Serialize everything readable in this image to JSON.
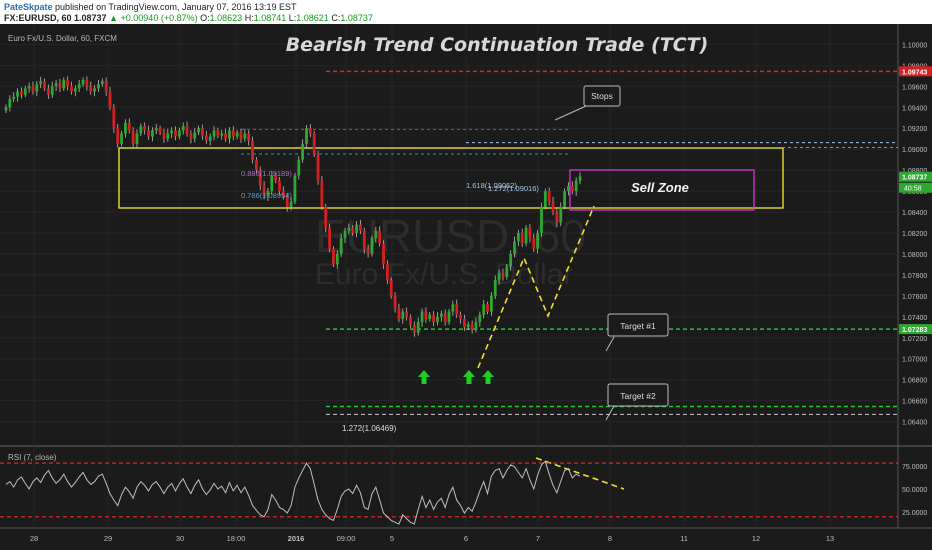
{
  "header": {
    "author": "PateSkpate",
    "published": "published on TradingView.com, January 07, 2016 13:19 EST",
    "symbol": "FX:EURUSD, 60",
    "price": "1.08737",
    "arrow": "▲",
    "change": "+0.00940 (+0.87%)",
    "open_label": "O:",
    "open": "1.08623",
    "high_label": "H:",
    "high": "1.08741",
    "low_label": "L:",
    "low": "1.08621",
    "close_label": "C:",
    "close": "1.08737"
  },
  "chart_data": {
    "type": "candlestick",
    "title": "Bearish Trend Continuation Trade (TCT)",
    "instrument_label": "Euro Fx/U.S. Dollar, 60, FXCM",
    "watermark": [
      "EURUSD, 60",
      "Euro Fx/U.S. Dollar"
    ],
    "y_ticks": [
      "1.10000",
      "1.09800",
      "1.09600",
      "1.09400",
      "1.09200",
      "1.09000",
      "1.08800",
      "1.08600",
      "1.08400",
      "1.08200",
      "1.08000",
      "1.07800",
      "1.07600",
      "1.07400",
      "1.07200",
      "1.07000",
      "1.06800",
      "1.06600",
      "1.06400"
    ],
    "ylim": [
      1.0632,
      1.1008
    ],
    "x_ticks": [
      "28",
      "29",
      "30",
      "18:00",
      "2016",
      "09:00",
      "5",
      "6",
      "7",
      "8",
      "11",
      "12",
      "13"
    ],
    "price_tags": {
      "stops": "1.09743",
      "current": "1.08737",
      "countdown": "40:58",
      "target1": "1.07283"
    },
    "levels": {
      "stops": 1.09743,
      "target1": 1.07283,
      "target2": 1.06544,
      "fib_1272": 1.06469,
      "fib_0886": 1.09189,
      "fib_0786": 1.08954,
      "fib_1618": 1.09062,
      "fib_1272_upper": 1.09016
    },
    "annotations": {
      "stops": "Stops",
      "target1": "Target #1",
      "target2": "Target #2",
      "sell_zone": "Sell Zone",
      "fib_0886": "0.886(1.09189)",
      "fib_0786": "0.786(1.08954)",
      "fib_1618": "1.618(1.09062)",
      "fib_1272_upper": "1.272(1.09016)",
      "fib_1272": "1.272(1.06469)"
    },
    "series": [
      {
        "name": "EURUSD",
        "close": [
          1.094,
          1.0948,
          1.095,
          1.0955,
          1.0952,
          1.0958,
          1.096,
          1.0955,
          1.0962,
          1.0965,
          1.0958,
          1.0952,
          1.096,
          1.0963,
          1.0958,
          1.0966,
          1.096,
          1.0955,
          1.0958,
          1.0962,
          1.0966,
          1.096,
          1.0955,
          1.0958,
          1.0962,
          1.0965,
          1.0955,
          1.094,
          1.092,
          1.0905,
          1.0915,
          1.0925,
          1.0918,
          1.0905,
          1.0915,
          1.0922,
          1.0918,
          1.0912,
          1.0918,
          1.092,
          1.0916,
          1.091,
          1.0915,
          1.0918,
          1.0912,
          1.0918,
          1.0922,
          1.0915,
          1.091,
          1.0916,
          1.092,
          1.0913,
          1.0908,
          1.0912,
          1.0918,
          1.0913,
          1.0915,
          1.091,
          1.0918,
          1.0912,
          1.0916,
          1.091,
          1.0915,
          1.0908,
          1.089,
          1.088,
          1.0865,
          1.0855,
          1.086,
          1.0875,
          1.087,
          1.086,
          1.0855,
          1.0845,
          1.085,
          1.0875,
          1.089,
          1.0905,
          1.092,
          1.0915,
          1.0895,
          1.087,
          1.0845,
          1.0825,
          1.0805,
          1.079,
          1.08,
          1.0815,
          1.0822,
          1.0825,
          1.082,
          1.0828,
          1.0822,
          1.0805,
          1.08,
          1.0815,
          1.0822,
          1.081,
          1.079,
          1.0775,
          1.076,
          1.0748,
          1.0738,
          1.0745,
          1.074,
          1.0732,
          1.0725,
          1.0735,
          1.0745,
          1.0738,
          1.0742,
          1.0735,
          1.074,
          1.0743,
          1.0735,
          1.0745,
          1.0752,
          1.0742,
          1.0738,
          1.073,
          1.0733,
          1.0728,
          1.0735,
          1.0742,
          1.0752,
          1.0745,
          1.076,
          1.0775,
          1.0782,
          1.0778,
          1.0788,
          1.08,
          1.0812,
          1.082,
          1.081,
          1.0825,
          1.0815,
          1.0805,
          1.082,
          1.0845,
          1.086,
          1.085,
          1.084,
          1.083,
          1.0845,
          1.086,
          1.0865,
          1.086,
          1.087,
          1.0874
        ]
      }
    ],
    "rsi": {
      "label": "RSI (7, close)",
      "y_ticks": [
        "75.0000",
        "50.0000",
        "25.0000"
      ],
      "ylim": [
        10,
        90
      ],
      "upper": 78,
      "lower": 20,
      "values": [
        55,
        58,
        52,
        60,
        63,
        56,
        50,
        58,
        62,
        57,
        65,
        70,
        62,
        56,
        60,
        66,
        58,
        52,
        57,
        63,
        68,
        60,
        55,
        58,
        64,
        66,
        56,
        45,
        38,
        32,
        44,
        52,
        47,
        40,
        52,
        58,
        54,
        48,
        55,
        58,
        52,
        45,
        52,
        56,
        48,
        56,
        61,
        52,
        45,
        54,
        60,
        50,
        44,
        49,
        56,
        50,
        53,
        46,
        57,
        48,
        54,
        46,
        52,
        43,
        32,
        27,
        22,
        20,
        28,
        44,
        38,
        30,
        28,
        24,
        32,
        52,
        62,
        70,
        78,
        72,
        55,
        38,
        28,
        22,
        18,
        16,
        28,
        42,
        48,
        50,
        45,
        54,
        46,
        30,
        28,
        45,
        52,
        38,
        24,
        20,
        16,
        14,
        12,
        22,
        18,
        14,
        12,
        28,
        42,
        30,
        38,
        28,
        36,
        40,
        30,
        44,
        52,
        38,
        32,
        24,
        30,
        26,
        36,
        48,
        58,
        45,
        64,
        70,
        72,
        62,
        70,
        76,
        74,
        68,
        62,
        72,
        60,
        50,
        65,
        76,
        80,
        66,
        54,
        46,
        58,
        70,
        72,
        62,
        66,
        64
      ]
    }
  }
}
